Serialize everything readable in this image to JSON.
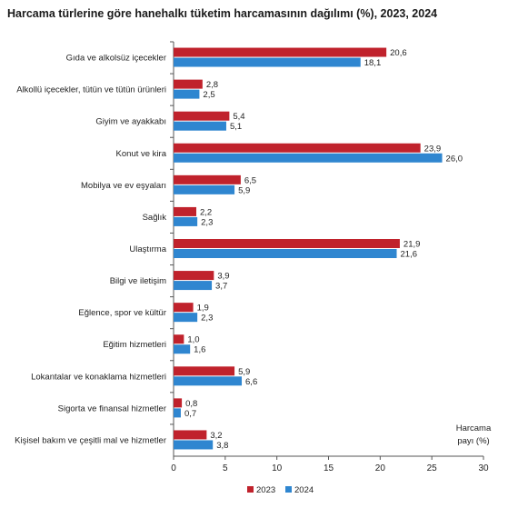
{
  "chart_data": {
    "type": "bar",
    "orientation": "horizontal",
    "title": "Harcama türlerine göre hanehalkı tüketim harcamasının dağılımı (%), 2023, 2024",
    "categories": [
      "Gıda ve alkolsüz içecekler",
      "Alkollü içecekler, tütün ve tütün ürünleri",
      "Giyim ve ayakkabı",
      "Konut ve kira",
      "Mobilya ve ev eşyaları",
      "Sağlık",
      "Ulaştırma",
      "Bilgi ve iletişim",
      "Eğlence, spor ve kültür",
      "Eğitim hizmetleri",
      "Lokantalar ve konaklama hizmetleri",
      "Sigorta ve finansal hizmetler",
      "Kişisel bakım ve çeşitli mal ve hizmetler"
    ],
    "series": [
      {
        "name": "2023",
        "color": "#c0222c",
        "values": [
          20.6,
          2.8,
          5.4,
          23.9,
          6.5,
          2.2,
          21.9,
          3.9,
          1.9,
          1.0,
          5.9,
          0.8,
          3.2
        ],
        "labels": [
          "20,6",
          "2,8",
          "5,4",
          "23,9",
          "6,5",
          "2,2",
          "21,9",
          "3,9",
          "1,9",
          "1,0",
          "5,9",
          "0,8",
          "3,2"
        ]
      },
      {
        "name": "2024",
        "color": "#2f86d0",
        "values": [
          18.1,
          2.5,
          5.1,
          26.0,
          5.9,
          2.3,
          21.6,
          3.7,
          2.3,
          1.6,
          6.6,
          0.7,
          3.8
        ],
        "labels": [
          "18,1",
          "2,5",
          "5,1",
          "26,0",
          "5,9",
          "2,3",
          "21,6",
          "3,7",
          "2,3",
          "1,6",
          "6,6",
          "0,7",
          "3,8"
        ]
      }
    ],
    "xlim": [
      0,
      30
    ],
    "xticks": [
      "0",
      "5",
      "10",
      "15",
      "20",
      "25",
      "30"
    ],
    "xlabel_line1": "Harcama",
    "xlabel_line2": "payı  (%)",
    "grid": false,
    "legend_position": "bottom-center"
  }
}
